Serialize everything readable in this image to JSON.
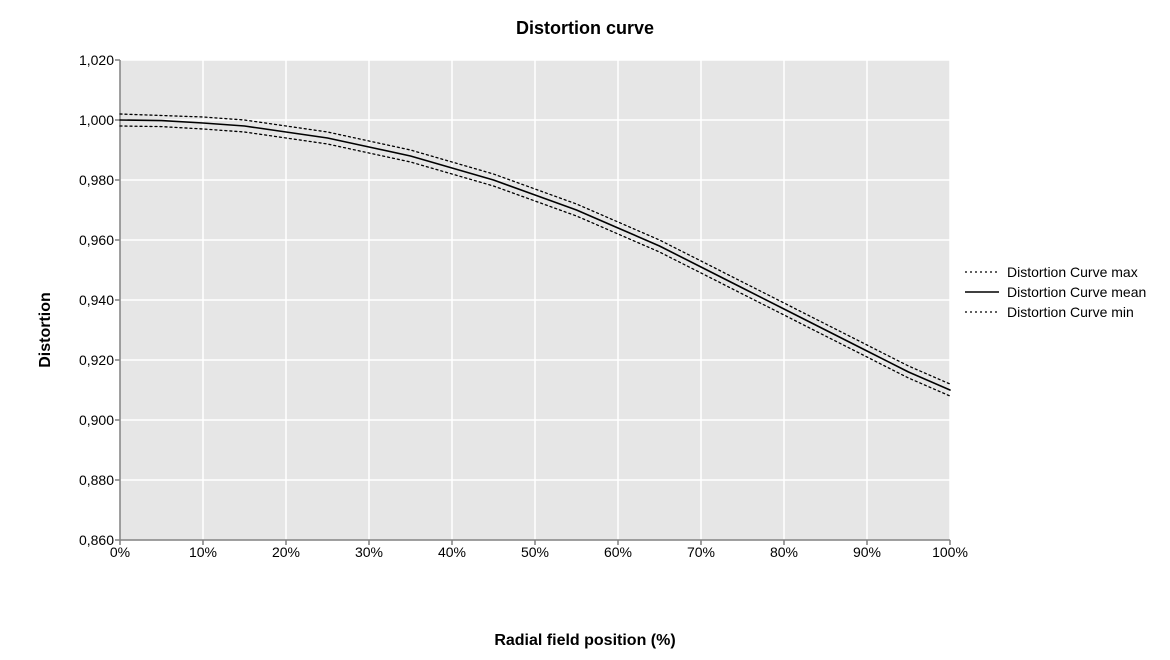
{
  "chart": {
    "type": "line",
    "title": "Distortion curve",
    "title_fontsize": 18,
    "xlabel": "Radial field position (%)",
    "xlabel_fontsize": 16,
    "ylabel": "Distortion",
    "ylabel_fontsize": 16,
    "background_color": "#ffffff",
    "plot_background_color": "#e6e6e6",
    "grid_color": "#ffffff",
    "axis_line_color": "#808080",
    "tick_label_color": "#000000",
    "tick_label_fontsize": 14,
    "x": {
      "min": 0,
      "max": 100,
      "tick_step": 10,
      "tick_labels": [
        "0%",
        "10%",
        "20%",
        "30%",
        "40%",
        "50%",
        "60%",
        "70%",
        "80%",
        "90%",
        "100%"
      ]
    },
    "y": {
      "min": 0.86,
      "max": 1.02,
      "tick_step": 0.02,
      "tick_labels": [
        "0,860",
        "0,880",
        "0,900",
        "0,920",
        "0,940",
        "0,960",
        "0,980",
        "1,000",
        "1,020"
      ]
    },
    "legend": {
      "position": "right",
      "fontsize": 14,
      "items": [
        {
          "label": "Distortion Curve max",
          "color": "#000000",
          "dash": "2,3",
          "width": 1.3
        },
        {
          "label": "Distortion Curve mean",
          "color": "#000000",
          "dash": "",
          "width": 1.6
        },
        {
          "label": "Distortion Curve min",
          "color": "#000000",
          "dash": "2,3",
          "width": 1.3
        }
      ]
    },
    "series": [
      {
        "name": "Distortion Curve max",
        "color": "#000000",
        "dash": "2,3",
        "width": 1.3,
        "x": [
          0,
          5,
          10,
          15,
          20,
          25,
          30,
          35,
          40,
          45,
          50,
          55,
          60,
          65,
          70,
          75,
          80,
          85,
          90,
          95,
          100
        ],
        "y": [
          1.002,
          1.0015,
          1.001,
          1.0,
          0.998,
          0.996,
          0.993,
          0.99,
          0.986,
          0.982,
          0.977,
          0.972,
          0.966,
          0.96,
          0.953,
          0.946,
          0.939,
          0.932,
          0.925,
          0.918,
          0.912
        ]
      },
      {
        "name": "Distortion Curve mean",
        "color": "#000000",
        "dash": "",
        "width": 1.6,
        "x": [
          0,
          5,
          10,
          15,
          20,
          25,
          30,
          35,
          40,
          45,
          50,
          55,
          60,
          65,
          70,
          75,
          80,
          85,
          90,
          95,
          100
        ],
        "y": [
          1.0,
          0.9998,
          0.999,
          0.998,
          0.996,
          0.994,
          0.991,
          0.988,
          0.984,
          0.98,
          0.975,
          0.97,
          0.964,
          0.958,
          0.951,
          0.944,
          0.937,
          0.93,
          0.923,
          0.916,
          0.91
        ]
      },
      {
        "name": "Distortion Curve min",
        "color": "#000000",
        "dash": "2,3",
        "width": 1.3,
        "x": [
          0,
          5,
          10,
          15,
          20,
          25,
          30,
          35,
          40,
          45,
          50,
          55,
          60,
          65,
          70,
          75,
          80,
          85,
          90,
          95,
          100
        ],
        "y": [
          0.998,
          0.9978,
          0.997,
          0.996,
          0.994,
          0.992,
          0.989,
          0.986,
          0.982,
          0.978,
          0.973,
          0.968,
          0.962,
          0.956,
          0.949,
          0.942,
          0.935,
          0.928,
          0.921,
          0.914,
          0.908
        ]
      }
    ]
  }
}
